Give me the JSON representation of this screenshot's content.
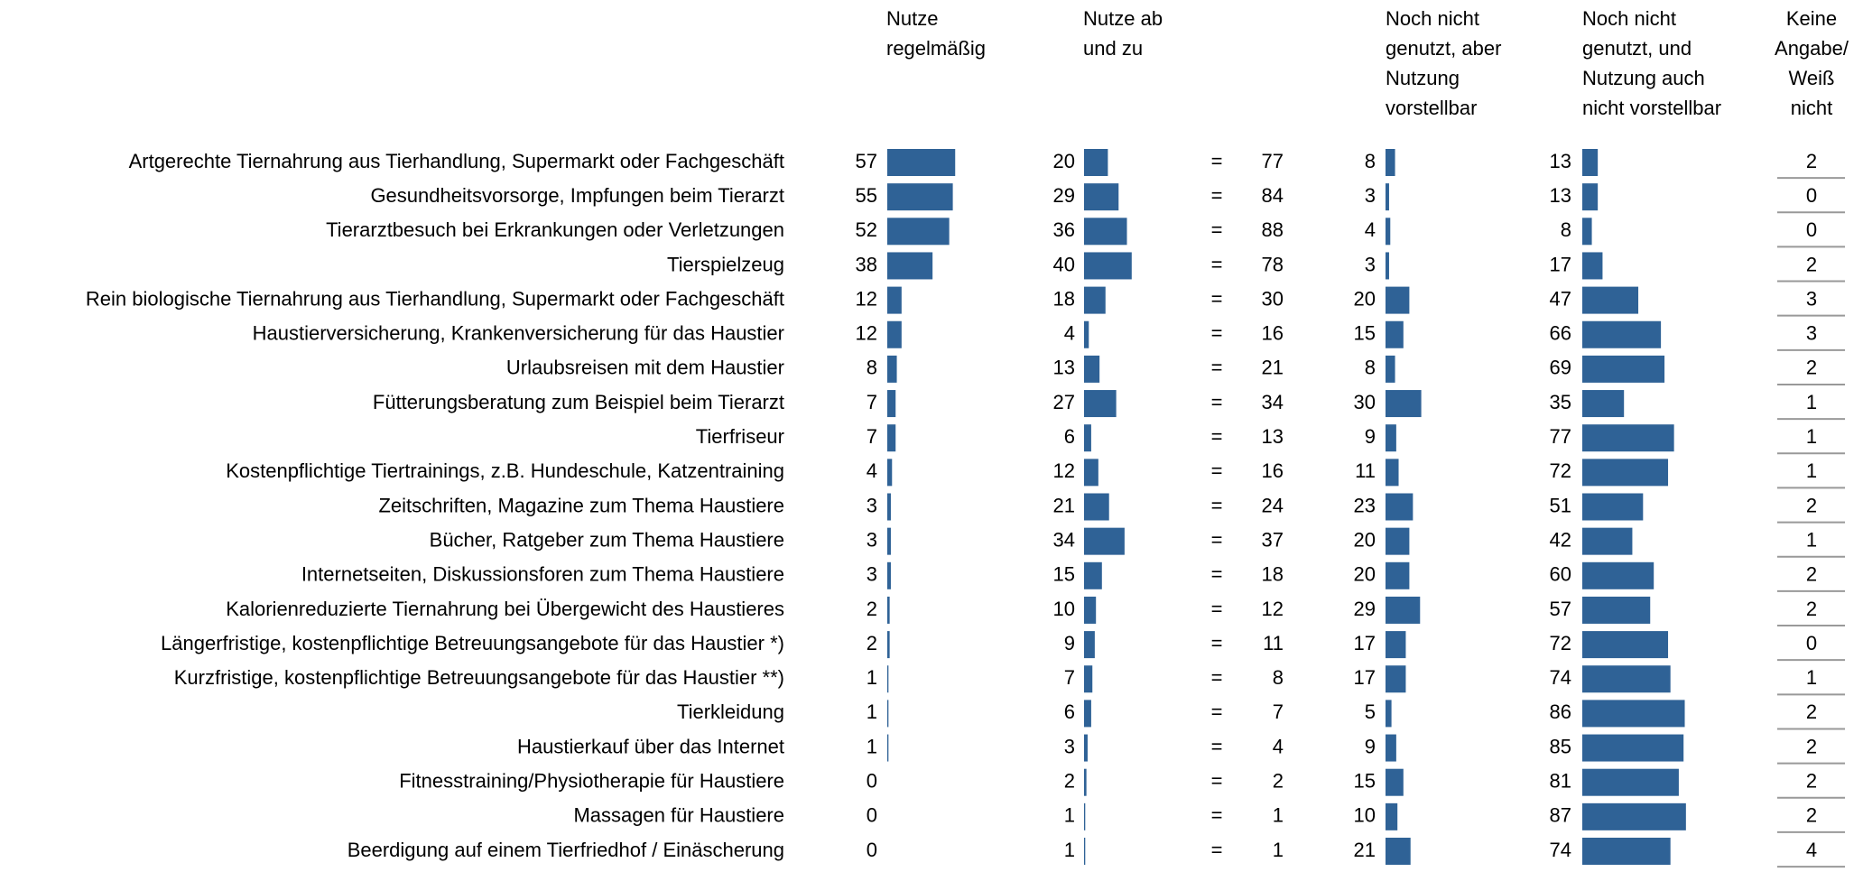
{
  "chart_data": {
    "type": "bar",
    "categories": [
      "Artgerechte Tiernahrung aus Tierhandlung, Supermarkt oder Fachgeschäft",
      "Gesundheitsvorsorge, Impfungen beim Tierarzt",
      "Tierarztbesuch bei Erkrankungen oder Verletzungen",
      "Tierspielzeug",
      "Rein biologische Tiernahrung aus Tierhandlung, Supermarkt oder Fachgeschäft",
      "Haustierversicherung, Krankenversicherung für das Haustier",
      "Urlaubsreisen mit dem Haustier",
      "Fütterungsberatung zum Beispiel beim Tierarzt",
      "Tierfriseur",
      "Kostenpflichtige Tiertrainings, z.B. Hundeschule, Katzentraining",
      "Zeitschriften, Magazine zum Thema Haustiere",
      "Bücher, Ratgeber zum Thema Haustiere",
      "Internetseiten, Diskussionsforen zum Thema Haustiere",
      "Kalorienreduzierte Tiernahrung bei Übergewicht des Haustieres",
      "Längerfristige, kostenpflichtige Betreuungsangebote für das Haustier *)",
      "Kurzfristige, kostenpflichtige Betreuungsangebote für das Haustier **)",
      "Tierkleidung",
      "Haustierkauf über das Internet",
      "Fitnesstraining/Physiotherapie für Haustiere",
      "Massagen für Haustiere",
      "Beerdigung auf einem Tierfriedhof / Einäscherung"
    ],
    "series": [
      {
        "name": "Nutze regelmäßig",
        "color": "#2f6296",
        "values": [
          57,
          55,
          52,
          38,
          12,
          12,
          8,
          7,
          7,
          4,
          3,
          3,
          3,
          2,
          2,
          1,
          1,
          1,
          0,
          0,
          0
        ]
      },
      {
        "name": "Nutze ab und zu",
        "color": "#2f6296",
        "values": [
          20,
          29,
          36,
          40,
          18,
          4,
          13,
          27,
          6,
          12,
          21,
          34,
          15,
          10,
          9,
          7,
          6,
          3,
          2,
          1,
          1
        ]
      },
      {
        "name": "Noch nicht genutzt, aber Nutzung vorstellbar",
        "color": "#2f6296",
        "values": [
          8,
          3,
          4,
          3,
          20,
          15,
          8,
          30,
          9,
          11,
          23,
          20,
          20,
          29,
          17,
          17,
          5,
          9,
          15,
          10,
          21
        ]
      },
      {
        "name": "Noch nicht genutzt, und Nutzung auch nicht vorstellbar",
        "color": "#2f6296",
        "values": [
          13,
          13,
          8,
          17,
          47,
          66,
          69,
          35,
          77,
          72,
          51,
          42,
          60,
          57,
          72,
          74,
          86,
          85,
          81,
          87,
          74
        ]
      }
    ],
    "total": {
      "symbol": "=",
      "values": [
        77,
        84,
        88,
        78,
        30,
        16,
        21,
        34,
        13,
        16,
        24,
        37,
        18,
        12,
        11,
        8,
        7,
        4,
        2,
        1,
        1
      ]
    },
    "no_answer": {
      "name": "Keine Angabe/ Weiß nicht",
      "values": [
        2,
        0,
        0,
        2,
        3,
        3,
        2,
        1,
        1,
        1,
        2,
        1,
        2,
        2,
        0,
        1,
        2,
        2,
        2,
        2,
        4
      ]
    },
    "xlim": [
      0,
      100
    ]
  }
}
